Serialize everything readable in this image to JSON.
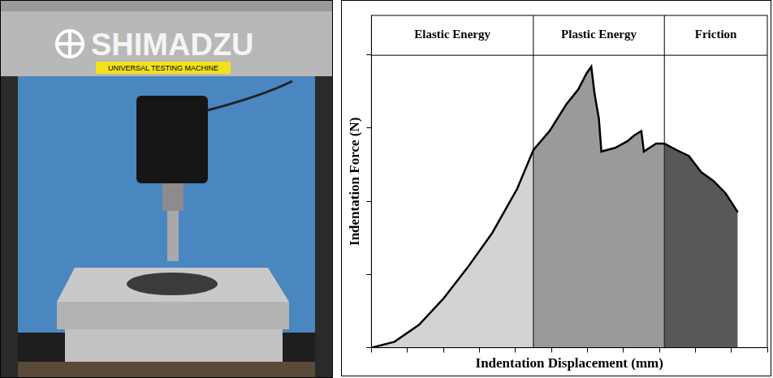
{
  "chart_data": {
    "type": "line",
    "x_label": "Indentation Displacement (mm)",
    "y_label": "Indentation Force (N)",
    "x": [
      0,
      0.64,
      1.32,
      2.0,
      2.68,
      3.36,
      4.05,
      4.5,
      4.95,
      5.41,
      5.75,
      5.98,
      6.11,
      6.2,
      6.32,
      6.39,
      6.77,
      7.11,
      7.3,
      7.5,
      7.57,
      7.91,
      8.14,
      8.48,
      8.82,
      9.16,
      9.5,
      9.84,
      10.18
    ],
    "values": [
      0,
      0.08,
      0.31,
      0.67,
      1.1,
      1.57,
      2.17,
      2.7,
      2.96,
      3.32,
      3.53,
      3.75,
      3.84,
      3.47,
      3.13,
      2.68,
      2.73,
      2.82,
      2.9,
      2.96,
      2.68,
      2.79,
      2.79,
      2.7,
      2.62,
      2.4,
      2.28,
      2.11,
      1.85
    ],
    "color": "#000000",
    "xlim": [
      0,
      11
    ],
    "xticks": [
      0,
      1,
      2,
      3,
      4,
      5,
      6,
      7,
      8,
      9,
      10,
      11
    ],
    "ylim": [
      0,
      4.54
    ],
    "yticks": [
      0,
      1,
      2,
      3,
      4
    ],
    "tick_labels": false,
    "grid": false,
    "regions": [
      {
        "label": "Elastic Energy",
        "from": 0,
        "to": 4.5,
        "color": "#d3d3d3"
      },
      {
        "label": "Plastic Energy",
        "from": 4.5,
        "to": 8.14,
        "color": "#9a9a9a"
      },
      {
        "label": "Friction",
        "from": 8.14,
        "to": 10.18,
        "color": "#585858"
      }
    ]
  },
  "photo": {
    "brand": "SHIMADZU",
    "label": "UNIVERSAL TESTING MACHINE"
  }
}
